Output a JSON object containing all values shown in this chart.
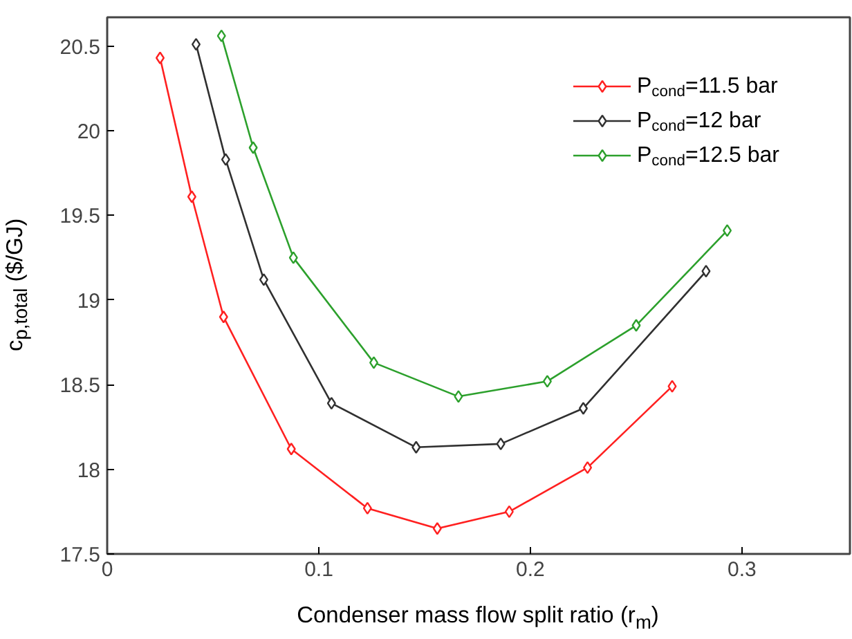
{
  "chart_data": {
    "type": "line",
    "xlabel": "Condenser mass flow split ratio (r$_{m}$)",
    "ylabel": "c$_{p,total}$ ($/GJ)",
    "xlim": [
      0,
      0.351
    ],
    "ylim": [
      17.5,
      20.67
    ],
    "xticks": [
      0,
      0.1,
      0.2,
      0.3
    ],
    "yticks": [
      17.5,
      18,
      18.5,
      19,
      19.5,
      20,
      20.5
    ],
    "marker": "diamond",
    "legend": "top right",
    "grid": false,
    "series": [
      {
        "name": "P$_{cond}$=11.5 bar",
        "color": "#ff2020",
        "x": [
          0.025,
          0.04,
          0.055,
          0.087,
          0.123,
          0.156,
          0.19,
          0.227,
          0.267
        ],
        "values": [
          20.43,
          19.61,
          18.9,
          18.12,
          17.77,
          17.65,
          17.75,
          18.01,
          18.49
        ]
      },
      {
        "name": "P$_{cond}$=12 bar",
        "color": "#303030",
        "x": [
          0.042,
          0.056,
          0.074,
          0.106,
          0.146,
          0.186,
          0.225,
          0.283
        ],
        "values": [
          20.51,
          19.83,
          19.12,
          18.39,
          18.13,
          18.15,
          18.36,
          19.17
        ]
      },
      {
        "name": "P$_{cond}$=12.5 bar",
        "color": "#2ca02c",
        "x": [
          0.054,
          0.069,
          0.088,
          0.126,
          0.166,
          0.208,
          0.25,
          0.293
        ],
        "values": [
          20.56,
          19.9,
          19.25,
          18.63,
          18.43,
          18.52,
          18.85,
          19.41
        ]
      }
    ]
  }
}
